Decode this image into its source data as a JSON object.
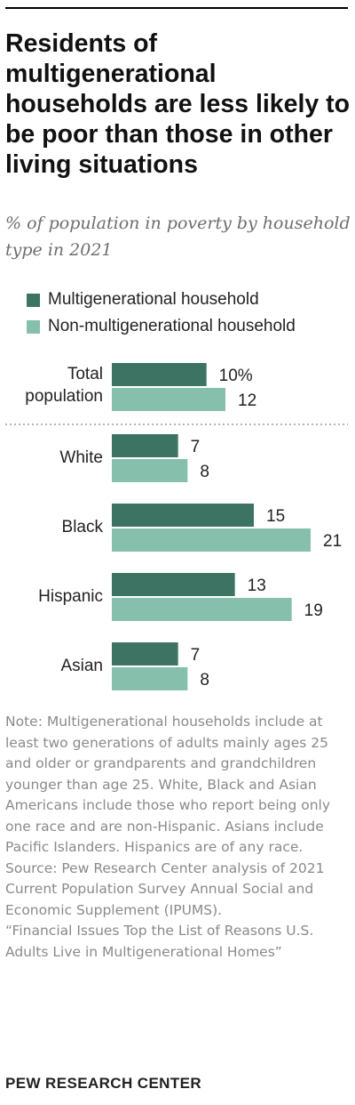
{
  "title": "Residents of multigenerational households are less likely to be poor than those in other living situations",
  "subtitle": "% of population in poverty by household type in 2021",
  "colors": {
    "multi": "#3d7363",
    "non_multi": "#86c0ad",
    "text": "#222222",
    "note": "#8a8a8a"
  },
  "chart_data": {
    "type": "bar",
    "orientation": "horizontal",
    "categories": [
      "Total population",
      "White",
      "Black",
      "Hispanic",
      "Asian"
    ],
    "series": [
      {
        "name": "Multigenerational household",
        "values": [
          10,
          7,
          15,
          13,
          7
        ],
        "labels": [
          "10%",
          "7",
          "15",
          "13",
          "7"
        ]
      },
      {
        "name": "Non-multigenerational household",
        "values": [
          12,
          8,
          21,
          19,
          8
        ],
        "labels": [
          "12",
          "8",
          "21",
          "19",
          "8"
        ]
      }
    ],
    "xlim": [
      0,
      21
    ],
    "grid": false,
    "legend_position": "top-left",
    "separator_after": "Total population"
  },
  "notes": {
    "note": "Note: Multigenerational households include at least two generations of adults mainly ages 25 and older or grandparents and grandchildren younger than age 25. White, Black and Asian Americans include those who report being only one race and are non-Hispanic. Asians include Pacific Islanders. Hispanics are of any race.",
    "source": "Source: Pew Research Center analysis of 2021 Current Population Survey Annual Social and Economic Supplement (IPUMS).",
    "report": "“Financial Issues Top the List of Reasons U.S. Adults Live in Multigenerational Homes”"
  },
  "brand": "PEW RESEARCH CENTER"
}
